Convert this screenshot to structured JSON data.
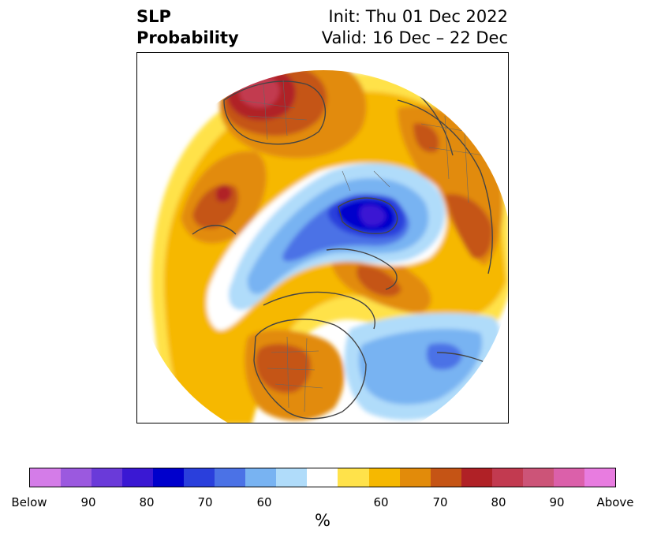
{
  "title": {
    "left_line1": "SLP",
    "left_line2": "Probability",
    "right_line1": "Init: Thu 01 Dec 2022",
    "right_line2": "Valid: 16 Dec – 22 Dec"
  },
  "colorbar": {
    "unit": "%",
    "colors": [
      "#d47ce8",
      "#9b59df",
      "#6a3ad9",
      "#3a18d3",
      "#0000cc",
      "#2a3fdc",
      "#4b72e6",
      "#78b3f2",
      "#b0dcfa",
      "#ffffff",
      "#ffe24a",
      "#f6b800",
      "#e28b0a",
      "#c55415",
      "#b02126",
      "#c23a50",
      "#cc5478",
      "#db60aa",
      "#e87ce0"
    ],
    "tick_labels": [
      "Below",
      "90",
      "80",
      "70",
      "60",
      "60",
      "70",
      "80",
      "90",
      "Above"
    ]
  },
  "legend_meaning": {
    "blue": "Below",
    "warm": "Above"
  }
}
